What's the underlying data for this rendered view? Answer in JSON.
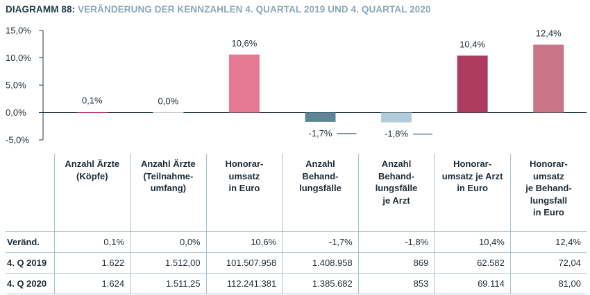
{
  "title": {
    "prefix": "DIAGRAMM 88:",
    "text": "VERÄNDERUNG DER KENNZAHLEN 4. QUARTAL 2019 UND 4. QUARTAL 2020"
  },
  "chart_data": {
    "type": "bar",
    "categories": [
      "Anzahl Ärzte (Köpfe)",
      "Anzahl Ärzte (Teilnahmeumfang)",
      "Honorarumsatz in Euro",
      "Anzahl Behandlungsfälle",
      "Anzahl Behandlungsfälle je Arzt",
      "Honorarumsatz je Arzt in Euro",
      "Honorarumsatz je Behandlungsfall in Euro"
    ],
    "values": [
      0.1,
      0.0,
      10.6,
      -1.7,
      -1.8,
      10.4,
      12.4
    ],
    "value_labels": [
      "0,1%",
      "0,0%",
      "10,6%",
      "-1,7%",
      "-1,8%",
      "10,4%",
      "12,4%"
    ],
    "bar_colors": [
      "#c0395f",
      "#cccccc",
      "#e57893",
      "#5f8696",
      "#b4ccd8",
      "#ac3d60",
      "#c97588"
    ],
    "ylim": [
      -5,
      15
    ],
    "yticks": [
      15,
      10,
      5,
      0,
      -5
    ],
    "ytick_labels": [
      "15,0%",
      "10,0%",
      "5,0%",
      "0,0%",
      "-5,0%"
    ],
    "grid": false
  },
  "table": {
    "headers": [
      [
        "Anzahl Ärzte",
        "(Köpfe)"
      ],
      [
        "Anzahl Ärzte",
        "(Teilnahme-",
        "umfang)"
      ],
      [
        "Honorar-",
        "umsatz",
        "in Euro"
      ],
      [
        "Anzahl",
        "Behand-",
        "lungsfälle"
      ],
      [
        "Anzahl",
        "Behand-",
        "lungsfälle",
        "je Arzt"
      ],
      [
        "Honorar-",
        "umsatz je Arzt",
        "in Euro"
      ],
      [
        "Honorar-",
        "umsatz",
        "je Behand-",
        "lungsfall",
        "in Euro"
      ]
    ],
    "rows": [
      {
        "label": "Veränd.",
        "cells": [
          "0,1%",
          "0,0%",
          "10,6%",
          "-1,7%",
          "-1,8%",
          "10,4%",
          "12,4%"
        ]
      },
      {
        "label": "4. Q 2019",
        "cells": [
          "1.622",
          "1.512,00",
          "101.507.958",
          "1.408.958",
          "869",
          "62.582",
          "72,04"
        ]
      },
      {
        "label": "4. Q 2020",
        "cells": [
          "1.624",
          "1.511,25",
          "112.241.381",
          "1.385.682",
          "853",
          "69.114",
          "81,00"
        ]
      }
    ]
  },
  "colors": {
    "axis": "#1f3a4a",
    "table_lines": "#a9c2d1",
    "title_accent": "#8aa7b9"
  }
}
